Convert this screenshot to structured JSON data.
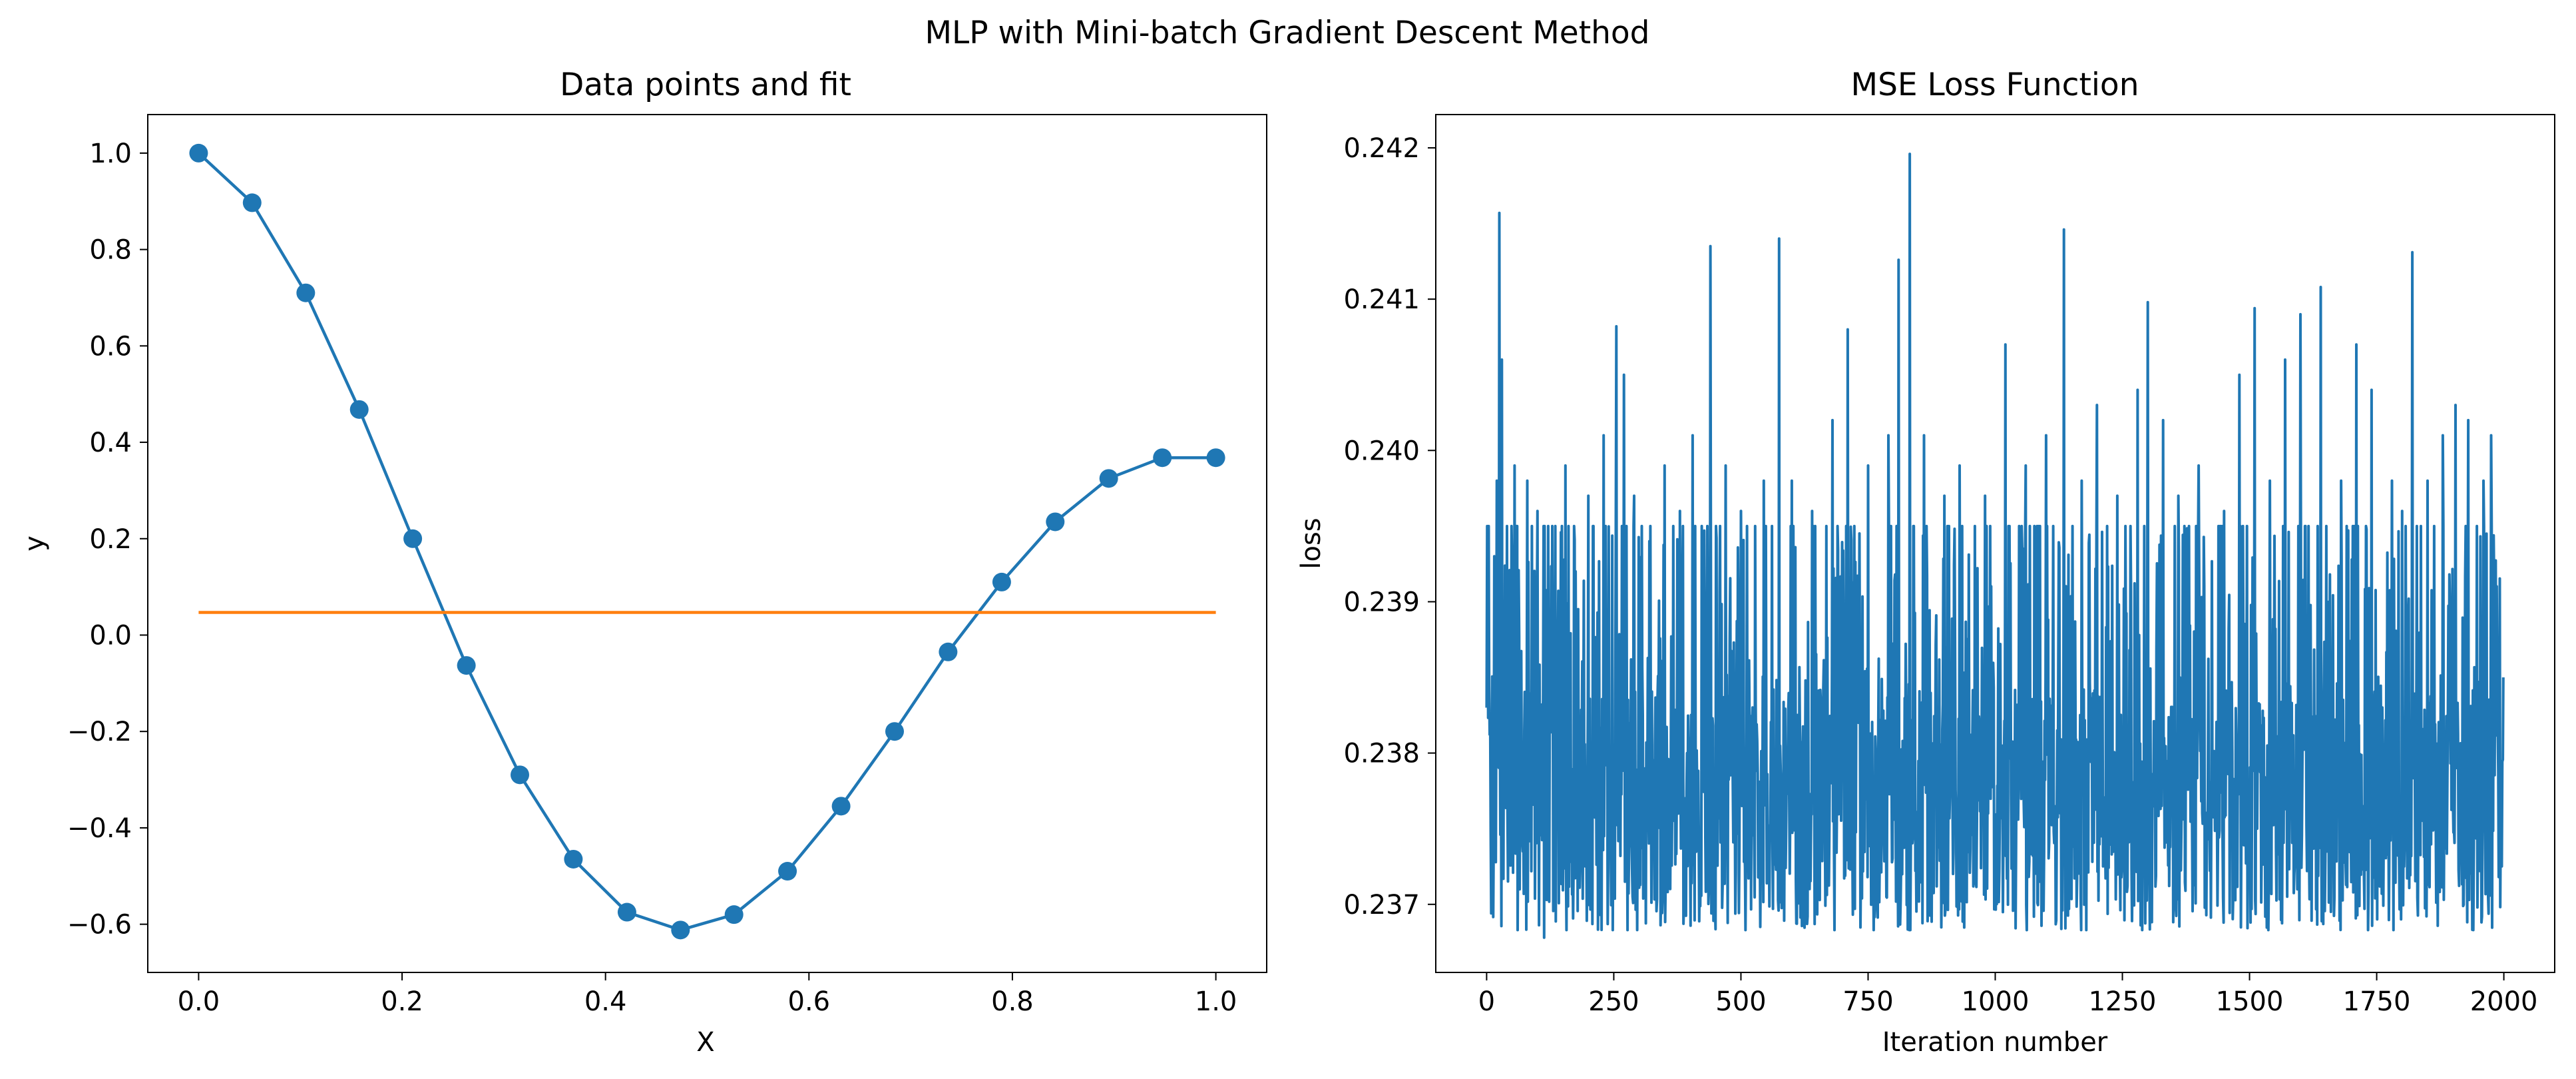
{
  "figure": {
    "suptitle": "MLP with Mini-batch Gradient Descent Method"
  },
  "chart_data": [
    {
      "type": "line",
      "title": "Data points and fit",
      "xlabel": "X",
      "ylabel": "y",
      "xlim": [
        -0.05,
        1.05
      ],
      "ylim": [
        -0.7,
        1.08
      ],
      "xticks": [
        0.0,
        0.2,
        0.4,
        0.6,
        0.8,
        1.0
      ],
      "xtick_labels": [
        "0.0",
        "0.2",
        "0.4",
        "0.6",
        "0.8",
        "1.0"
      ],
      "yticks": [
        -0.6,
        -0.4,
        -0.2,
        0.0,
        0.2,
        0.4,
        0.6,
        0.8,
        1.0
      ],
      "ytick_labels": [
        "−0.6",
        "−0.4",
        "−0.2",
        "0.0",
        "0.2",
        "0.4",
        "0.6",
        "0.8",
        "1.0"
      ],
      "grid": false,
      "series": [
        {
          "color": "#1f77b4",
          "marker": "circle",
          "x": [
            0.0,
            0.0526,
            0.1053,
            0.1579,
            0.2105,
            0.2632,
            0.3158,
            0.3684,
            0.4211,
            0.4737,
            0.5263,
            0.5789,
            0.6316,
            0.6842,
            0.7368,
            0.7895,
            0.8421,
            0.8947,
            0.9474,
            1.0
          ],
          "y": [
            1.0,
            0.897,
            0.71,
            0.468,
            0.2,
            -0.063,
            -0.29,
            -0.465,
            -0.575,
            -0.612,
            -0.58,
            -0.49,
            -0.355,
            -0.2,
            -0.035,
            0.11,
            0.235,
            0.325,
            0.368,
            0.368
          ]
        },
        {
          "color": "#ff7f0e",
          "marker": "none",
          "x": [
            0.0,
            1.0
          ],
          "y": [
            0.047,
            0.047
          ]
        }
      ]
    },
    {
      "type": "line",
      "title": "MSE Loss Function",
      "xlabel": "Iteration number",
      "ylabel": "loss",
      "xlim": [
        -100,
        2100
      ],
      "ylim": [
        0.23655,
        0.24222
      ],
      "xticks": [
        0,
        250,
        500,
        750,
        1000,
        1250,
        1500,
        1750,
        2000
      ],
      "xtick_labels": [
        "0",
        "250",
        "500",
        "750",
        "1000",
        "1250",
        "1500",
        "1750",
        "2000"
      ],
      "yticks": [
        0.237,
        0.238,
        0.239,
        0.24,
        0.241,
        0.242
      ],
      "ytick_labels": [
        "0.237",
        "0.238",
        "0.239",
        "0.240",
        "0.241",
        "0.242"
      ],
      "grid": false,
      "series": [
        {
          "color": "#1f77b4",
          "marker": "none",
          "n_points": 2000,
          "baseline": 0.2377,
          "min": 0.23678,
          "max": 0.24196,
          "peaks": [
            [
              0,
              0.2383
            ],
            [
              8,
              0.2375
            ],
            [
              15,
              0.2393
            ],
            [
              20,
              0.2398
            ],
            [
              25,
              0.24157
            ],
            [
              30,
              0.2406
            ],
            [
              40,
              0.2395
            ],
            [
              55,
              0.2399
            ],
            [
              65,
              0.2371
            ],
            [
              80,
              0.2398
            ],
            [
              100,
              0.2396
            ],
            [
              113,
              0.23678
            ],
            [
              130,
              0.2389
            ],
            [
              155,
              0.2399
            ],
            [
              175,
              0.2392
            ],
            [
              200,
              0.2397
            ],
            [
              230,
              0.2401
            ],
            [
              255,
              0.24082
            ],
            [
              270,
              0.2405
            ],
            [
              290,
              0.2397
            ],
            [
              320,
              0.2394
            ],
            [
              350,
              0.2399
            ],
            [
              380,
              0.2396
            ],
            [
              405,
              0.2401
            ],
            [
              440,
              0.24135
            ],
            [
              470,
              0.2399
            ],
            [
              500,
              0.2396
            ],
            [
              545,
              0.2398
            ],
            [
              575,
              0.2414
            ],
            [
              600,
              0.2398
            ],
            [
              640,
              0.2396
            ],
            [
              680,
              0.2402
            ],
            [
              710,
              0.2408
            ],
            [
              750,
              0.2399
            ],
            [
              790,
              0.2401
            ],
            [
              810,
              0.24126
            ],
            [
              832,
              0.24196
            ],
            [
              860,
              0.2401
            ],
            [
              900,
              0.2397
            ],
            [
              930,
              0.2399
            ],
            [
              980,
              0.2397
            ],
            [
              1020,
              0.2407
            ],
            [
              1060,
              0.2399
            ],
            [
              1100,
              0.2401
            ],
            [
              1135,
              0.24146
            ],
            [
              1170,
              0.2398
            ],
            [
              1200,
              0.2403
            ],
            [
              1240,
              0.2397
            ],
            [
              1280,
              0.2404
            ],
            [
              1300,
              0.24098
            ],
            [
              1330,
              0.2402
            ],
            [
              1360,
              0.2397
            ],
            [
              1400,
              0.2399
            ],
            [
              1450,
              0.2396
            ],
            [
              1480,
              0.2405
            ],
            [
              1510,
              0.24094
            ],
            [
              1540,
              0.2398
            ],
            [
              1570,
              0.2406
            ],
            [
              1600,
              0.2409
            ],
            [
              1640,
              0.24108
            ],
            [
              1680,
              0.2398
            ],
            [
              1710,
              0.2407
            ],
            [
              1740,
              0.2404
            ],
            [
              1780,
              0.2398
            ],
            [
              1800,
              0.2396
            ],
            [
              1820,
              0.24131
            ],
            [
              1850,
              0.2398
            ],
            [
              1880,
              0.2401
            ],
            [
              1905,
              0.2403
            ],
            [
              1930,
              0.2402
            ],
            [
              1960,
              0.2398
            ],
            [
              1975,
              0.2401
            ],
            [
              2000,
              0.2385
            ]
          ]
        }
      ]
    }
  ]
}
